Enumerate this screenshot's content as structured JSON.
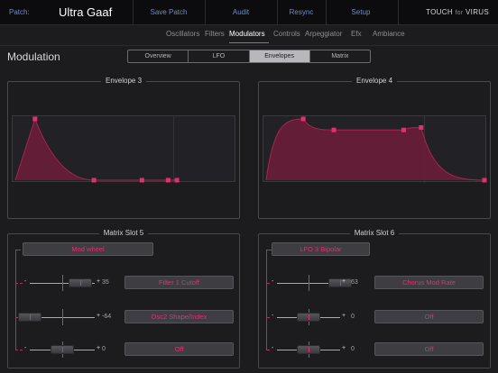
{
  "topbar": {
    "patch_label": "Patch:",
    "patch_name": "Ultra Gaaf",
    "save_patch": "Save Patch",
    "audit": "Audit",
    "resync": "Resync",
    "setup": "Setup",
    "logo_touch": "TOUCH",
    "logo_for": "for",
    "logo_virus": "VIRUS"
  },
  "main_tabs": [
    {
      "label": "Oscillators"
    },
    {
      "label": "Filters"
    },
    {
      "label": "Modulators",
      "active": true
    },
    {
      "label": "Controls"
    },
    {
      "label": "Arpeggiator"
    },
    {
      "label": "Efx"
    },
    {
      "label": "Ambiance"
    }
  ],
  "section_title": "Modulation",
  "sub_tabs": [
    {
      "label": "Overview"
    },
    {
      "label": "LFO"
    },
    {
      "label": "Envelopes",
      "active": true
    },
    {
      "label": "Matrix"
    }
  ],
  "envelopes": [
    {
      "title": "Envelope 3",
      "points": [
        [
          0,
          0
        ],
        [
          0.09,
          1
        ],
        [
          0.36,
          0
        ],
        [
          0.58,
          0
        ],
        [
          0.7,
          0
        ],
        [
          0.74,
          0
        ]
      ],
      "curve": "sharp"
    },
    {
      "title": "Envelope 4",
      "points": [
        [
          0,
          0
        ],
        [
          0.17,
          1
        ],
        [
          0.31,
          0.82
        ],
        [
          0.63,
          0.82
        ],
        [
          0.71,
          0.86
        ],
        [
          1,
          0
        ]
      ],
      "curve": "smooth"
    }
  ],
  "matrix_slots": [
    {
      "title": "Matrix Slot 5",
      "source": "Mod wheel",
      "rows": [
        {
          "value": "35",
          "amount": 35,
          "destination": "Filter 1 Cutoff"
        },
        {
          "value": "-64",
          "amount": -64,
          "destination": "Osc2 Shape/Index"
        },
        {
          "value": "0",
          "amount": 0,
          "destination": "Off"
        }
      ]
    },
    {
      "title": "Matrix Slot 6",
      "source": "LFO 3 Bipolar",
      "rows": [
        {
          "value": "63",
          "amount": 63,
          "destination": "Chorus Mod Rate"
        },
        {
          "value": "0",
          "amount": 0,
          "destination": "Off"
        },
        {
          "value": "0",
          "amount": 0,
          "destination": "Off"
        }
      ]
    }
  ],
  "slider_minus": "-",
  "slider_plus": "+",
  "colors": {
    "accent": "#e0306e",
    "link": "#6d8bc8",
    "env_fill": "#6e1c3a"
  }
}
